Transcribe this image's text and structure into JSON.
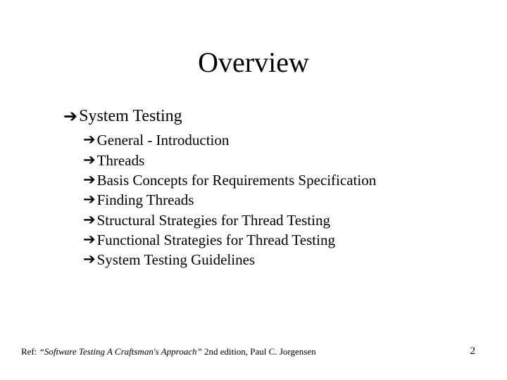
{
  "title": "Overview",
  "bullet_glyph": "➔",
  "level1": [
    {
      "text": "System Testing"
    }
  ],
  "level2": [
    {
      "text": "General - Introduction"
    },
    {
      "text": "Threads"
    },
    {
      "text": "Basis Concepts for Requirements Specification"
    },
    {
      "text": "Finding Threads"
    },
    {
      "text": "Structural Strategies for Thread Testing"
    },
    {
      "text": "Functional Strategies for Thread Testing"
    },
    {
      "text": "System Testing Guidelines"
    }
  ],
  "footer": {
    "label": "Ref: ",
    "title": "“Software Testing A Craftsman's Approach”",
    "suffix": " 2nd edition, Paul C. Jorgensen"
  },
  "page_number": "2",
  "colors": {
    "background": "#ffffff",
    "text": "#000000"
  },
  "fonts": {
    "title_size_pt": 40,
    "l1_size_pt": 24,
    "l2_size_pt": 21,
    "footer_size_pt": 13
  }
}
